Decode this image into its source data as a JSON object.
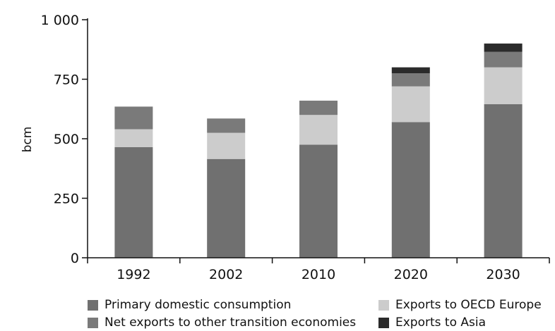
{
  "chart_data": {
    "type": "bar",
    "stacked": true,
    "categories": [
      "1992",
      "2002",
      "2010",
      "2020",
      "2030"
    ],
    "series": [
      {
        "name": "Primary domestic consumption",
        "color": "#707070",
        "values": [
          465,
          415,
          475,
          570,
          645
        ]
      },
      {
        "name": "Exports to OECD Europe",
        "color": "#cccccc",
        "values": [
          75,
          110,
          125,
          150,
          155
        ]
      },
      {
        "name": "Net exports to other transition economies",
        "color": "#7a7a7a",
        "values": [
          95,
          60,
          60,
          55,
          65
        ]
      },
      {
        "name": "Exports to Asia",
        "color": "#2b2b2b",
        "values": [
          0,
          0,
          0,
          25,
          35
        ]
      }
    ],
    "y_ticks": [
      0,
      250,
      500,
      750,
      1000
    ],
    "y_tick_labels": [
      "0",
      "250",
      "500",
      "750",
      "1 000"
    ],
    "ylabel": "bcm",
    "ylim": [
      0,
      1000
    ],
    "grid": false,
    "legend_position": "bottom"
  }
}
